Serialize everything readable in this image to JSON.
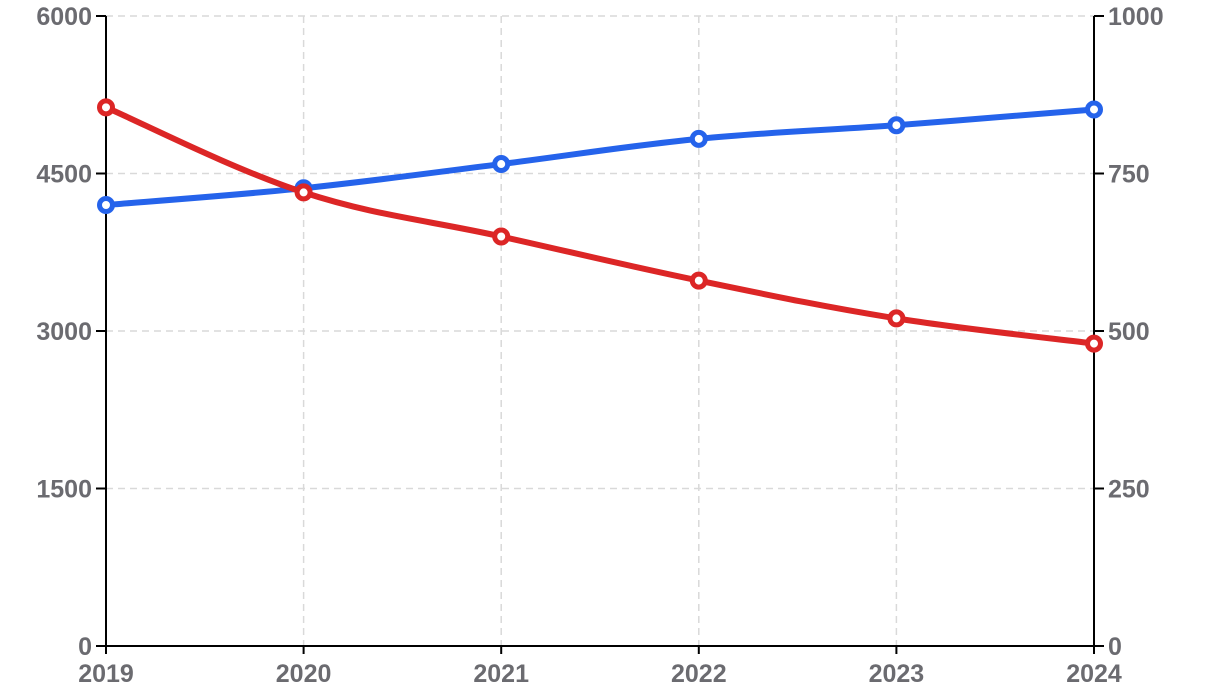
{
  "chart_data": {
    "type": "line",
    "title": "",
    "xlabel": "",
    "ylabel": "",
    "ylabel_right": "",
    "categories": [
      "2019",
      "2020",
      "2021",
      "2022",
      "2023",
      "2024"
    ],
    "y_left": {
      "min": 0,
      "max": 6000,
      "ticks": [
        "0",
        "1500",
        "3000",
        "4500",
        "6000"
      ]
    },
    "y_right": {
      "min": 0,
      "max": 1000,
      "ticks": [
        "0",
        "250",
        "500",
        "750",
        "1000"
      ]
    },
    "grid": true,
    "legend": "none",
    "series": [
      {
        "axis": "left",
        "color": "#2563eb",
        "values": [
          4200,
          4360,
          4590,
          4830,
          4960,
          5110
        ]
      },
      {
        "axis": "right",
        "color": "#dc2626",
        "values": [
          855,
          720,
          650,
          580,
          520,
          480
        ]
      }
    ]
  }
}
